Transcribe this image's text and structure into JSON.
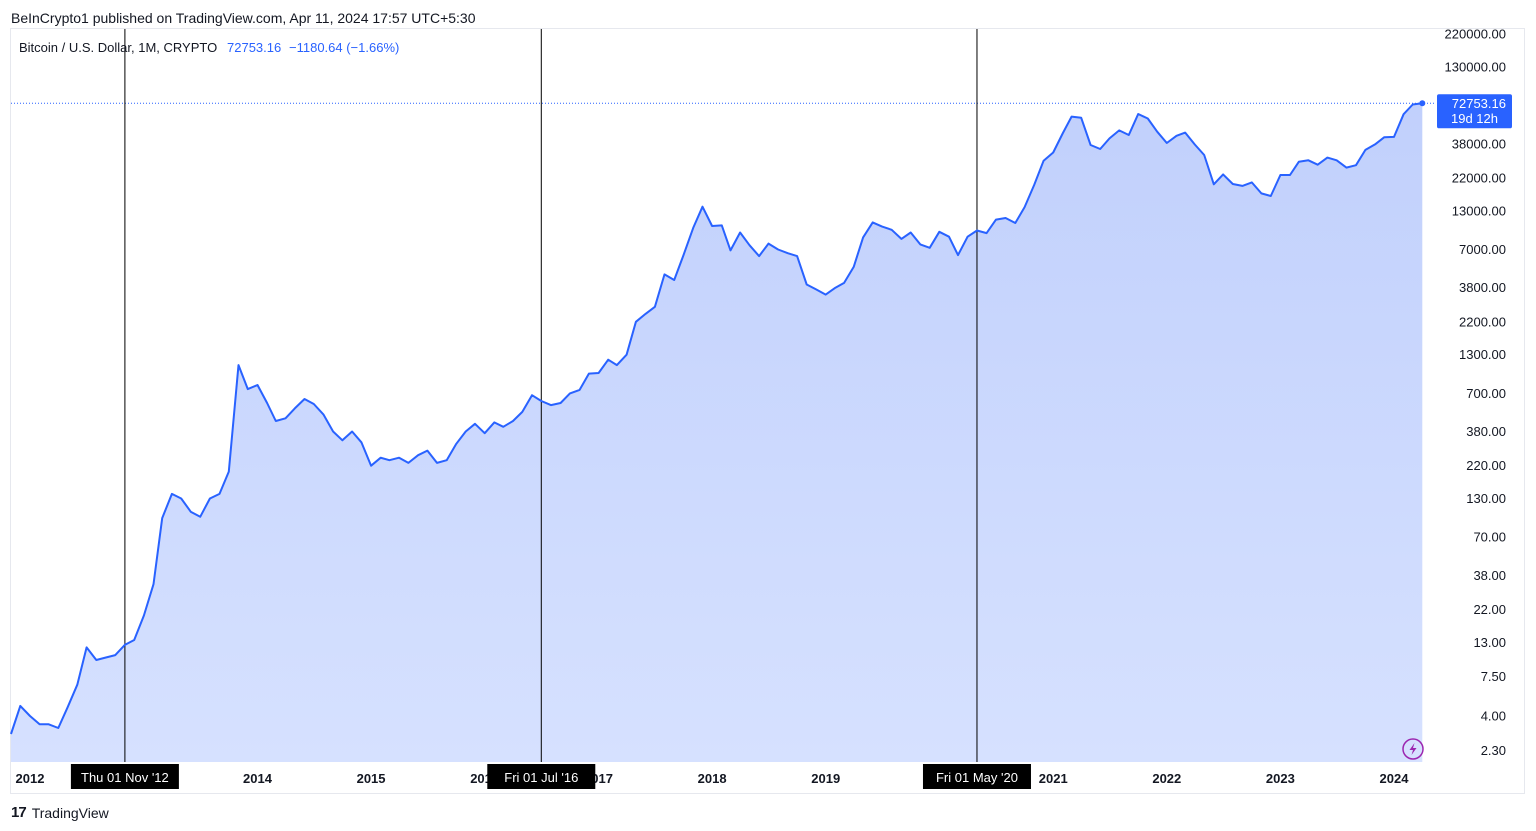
{
  "header": {
    "published_text": "BeInCrypto1 published on TradingView.com, Apr 11, 2024 17:57 UTC+5:30"
  },
  "legend": {
    "symbol_text": "Bitcoin / U.S. Dollar, 1M, CRYPTO",
    "last_value": "72753.16",
    "change_text": "−1180.64 (−1.66%)"
  },
  "price_tag": {
    "value": "72753.16",
    "countdown": "19d 12h"
  },
  "footer": {
    "logo_glyph": "17",
    "brand": "TradingView"
  },
  "colors": {
    "line": "#2962ff",
    "fill_top": "#c1d0fc",
    "fill_bottom": "#d6e1ff",
    "tag_bg": "#2962ff",
    "marker": "#000000",
    "text": "#131722",
    "lightning": "#9c27b0"
  },
  "chart_data": {
    "type": "area",
    "y_scale": "log",
    "ylim": [
      1.7,
      300000
    ],
    "x_range": [
      "2011-11-01",
      "2024-05-15"
    ],
    "y_ticks": [
      {
        "value": 220000,
        "label": "220000.00"
      },
      {
        "value": 130000,
        "label": "130000.00"
      },
      {
        "value": 38000,
        "label": "38000.00"
      },
      {
        "value": 22000,
        "label": "22000.00"
      },
      {
        "value": 13000,
        "label": "13000.00"
      },
      {
        "value": 7000,
        "label": "7000.00"
      },
      {
        "value": 3800,
        "label": "3800.00"
      },
      {
        "value": 2200,
        "label": "2200.00"
      },
      {
        "value": 1300,
        "label": "1300.00"
      },
      {
        "value": 700,
        "label": "700.00"
      },
      {
        "value": 380,
        "label": "380.00"
      },
      {
        "value": 220,
        "label": "220.00"
      },
      {
        "value": 130,
        "label": "130.00"
      },
      {
        "value": 70,
        "label": "70.00"
      },
      {
        "value": 38,
        "label": "38.00"
      },
      {
        "value": 22,
        "label": "22.00"
      },
      {
        "value": 13,
        "label": "13.00"
      },
      {
        "value": 7.5,
        "label": "7.50"
      },
      {
        "value": 4,
        "label": "4.00"
      },
      {
        "value": 2.3,
        "label": "2.30"
      }
    ],
    "x_ticks": [
      {
        "date": "2012-01-01",
        "label": "2012"
      },
      {
        "date": "2014-01-01",
        "label": "2014"
      },
      {
        "date": "2015-01-01",
        "label": "2015"
      },
      {
        "date": "2016-01-01",
        "label": "2016"
      },
      {
        "date": "2017-01-01",
        "label": "2017"
      },
      {
        "date": "2018-01-01",
        "label": "2018"
      },
      {
        "date": "2019-01-01",
        "label": "2019"
      },
      {
        "date": "2021-01-01",
        "label": "2021"
      },
      {
        "date": "2022-01-01",
        "label": "2022"
      },
      {
        "date": "2023-01-01",
        "label": "2023"
      },
      {
        "date": "2024-01-01",
        "label": "2024"
      }
    ],
    "markers": [
      {
        "date": "2012-11-01",
        "label": "Thu 01 Nov '12"
      },
      {
        "date": "2016-07-01",
        "label": "Fri 01 Jul '16"
      },
      {
        "date": "2020-05-01",
        "label": "Fri 01 May '20"
      }
    ],
    "last_value": 72753.16,
    "series": [
      {
        "x": [
          "2011-11-01",
          "2011-12-01",
          "2012-01-01",
          "2012-02-01",
          "2012-03-01",
          "2012-04-01",
          "2012-05-01",
          "2012-06-01",
          "2012-07-01",
          "2012-08-01",
          "2012-09-01",
          "2012-10-01",
          "2012-11-01",
          "2012-12-01",
          "2013-01-01",
          "2013-02-01",
          "2013-03-01",
          "2013-04-01",
          "2013-05-01",
          "2013-06-01",
          "2013-07-01",
          "2013-08-01",
          "2013-09-01",
          "2013-10-01",
          "2013-11-01",
          "2013-12-01",
          "2014-01-01",
          "2014-02-01",
          "2014-03-01",
          "2014-04-01",
          "2014-05-01",
          "2014-06-01",
          "2014-07-01",
          "2014-08-01",
          "2014-09-01",
          "2014-10-01",
          "2014-11-01",
          "2014-12-01",
          "2015-01-01",
          "2015-02-01",
          "2015-03-01",
          "2015-04-01",
          "2015-05-01",
          "2015-06-01",
          "2015-07-01",
          "2015-08-01",
          "2015-09-01",
          "2015-10-01",
          "2015-11-01",
          "2015-12-01",
          "2016-01-01",
          "2016-02-01",
          "2016-03-01",
          "2016-04-01",
          "2016-05-01",
          "2016-06-01",
          "2016-07-01",
          "2016-08-01",
          "2016-09-01",
          "2016-10-01",
          "2016-11-01",
          "2016-12-01",
          "2017-01-01",
          "2017-02-01",
          "2017-03-01",
          "2017-04-01",
          "2017-05-01",
          "2017-06-01",
          "2017-07-01",
          "2017-08-01",
          "2017-09-01",
          "2017-10-01",
          "2017-11-01",
          "2017-12-01",
          "2018-01-01",
          "2018-02-01",
          "2018-03-01",
          "2018-04-01",
          "2018-05-01",
          "2018-06-01",
          "2018-07-01",
          "2018-08-01",
          "2018-09-01",
          "2018-10-01",
          "2018-11-01",
          "2018-12-01",
          "2019-01-01",
          "2019-02-01",
          "2019-03-01",
          "2019-04-01",
          "2019-05-01",
          "2019-06-01",
          "2019-07-01",
          "2019-08-01",
          "2019-09-01",
          "2019-10-01",
          "2019-11-01",
          "2019-12-01",
          "2020-01-01",
          "2020-02-01",
          "2020-03-01",
          "2020-04-01",
          "2020-05-01",
          "2020-06-01",
          "2020-07-01",
          "2020-08-01",
          "2020-09-01",
          "2020-10-01",
          "2020-11-01",
          "2020-12-01",
          "2021-01-01",
          "2021-02-01",
          "2021-03-01",
          "2021-04-01",
          "2021-05-01",
          "2021-06-01",
          "2021-07-01",
          "2021-08-01",
          "2021-09-01",
          "2021-10-01",
          "2021-11-01",
          "2021-12-01",
          "2022-01-01",
          "2022-02-01",
          "2022-03-01",
          "2022-04-01",
          "2022-05-01",
          "2022-06-01",
          "2022-07-01",
          "2022-08-01",
          "2022-09-01",
          "2022-10-01",
          "2022-11-01",
          "2022-12-01",
          "2023-01-01",
          "2023-02-01",
          "2023-03-01",
          "2023-04-01",
          "2023-05-01",
          "2023-06-01",
          "2023-07-01",
          "2023-08-01",
          "2023-09-01",
          "2023-10-01",
          "2023-11-01",
          "2023-12-01",
          "2024-01-01",
          "2024-02-01",
          "2024-03-01",
          "2024-04-01"
        ],
        "y": [
          3.0,
          4.7,
          4.0,
          3.5,
          3.5,
          3.3,
          4.6,
          6.6,
          12.0,
          9.8,
          10.2,
          10.6,
          12.5,
          13.5,
          20,
          33,
          95,
          140,
          130,
          105,
          97,
          130,
          140,
          200,
          1100,
          750,
          800,
          600,
          450,
          470,
          550,
          640,
          590,
          500,
          380,
          330,
          380,
          320,
          220,
          250,
          240,
          250,
          230,
          260,
          280,
          230,
          240,
          310,
          380,
          430,
          370,
          440,
          410,
          450,
          520,
          680,
          620,
          580,
          600,
          700,
          740,
          960,
          970,
          1200,
          1100,
          1300,
          2200,
          2500,
          2800,
          4700,
          4300,
          6400,
          9900,
          13900,
          10200,
          10300,
          6900,
          9200,
          7500,
          6300,
          7700,
          7000,
          6600,
          6300,
          4000,
          3700,
          3400,
          3800,
          4100,
          5300,
          8500,
          10800,
          10100,
          9600,
          8300,
          9200,
          7600,
          7200,
          9300,
          8600,
          6400,
          8600,
          9500,
          9100,
          11300,
          11600,
          10700,
          13800,
          19700,
          29000,
          33100,
          45200,
          58800,
          57700,
          37300,
          35000,
          41500,
          47100,
          43800,
          61300,
          57000,
          46200,
          38500,
          43200,
          45500,
          37600,
          31800,
          19900,
          23300,
          20000,
          19400,
          20500,
          17200,
          16500,
          23100,
          23100,
          28500,
          29200,
          27200,
          30500,
          29200,
          26000,
          27000,
          34500,
          37700,
          42300,
          42500,
          61100,
          71300,
          72753
        ]
      }
    ]
  }
}
